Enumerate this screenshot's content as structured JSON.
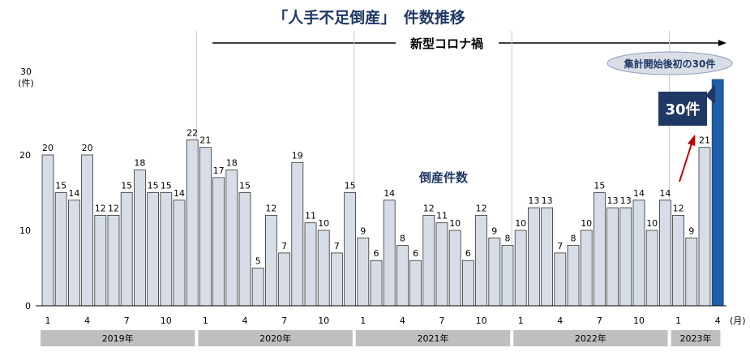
{
  "title": "「人手不足倒産」　件数推移",
  "corona_label": "新型コロナ禍",
  "series_label": "倒産件数",
  "callout_oval": "集計開始後初の30件",
  "callout_box": "30件",
  "colors": {
    "bar_fill": "#d6dde6",
    "bar_stroke": "#333333",
    "highlight_fill": "#1f5ea8",
    "title": "#1f3864",
    "callout_box": "#1f3864",
    "arrow_red": "#c00000",
    "year_band": "#bfbfbf"
  },
  "chart_data": {
    "type": "bar",
    "title": "「人手不足倒産」　件数推移",
    "ylabel": "30\n(件)",
    "xlabel_unit": "(月)",
    "ylim": [
      0,
      30
    ],
    "yticks": [
      0,
      10,
      20,
      30
    ],
    "y_unit": "(件)",
    "months": [
      1,
      2,
      3,
      4,
      5,
      6,
      7,
      8,
      9,
      10,
      11,
      12,
      1,
      2,
      3,
      4,
      5,
      6,
      7,
      8,
      9,
      10,
      11,
      12,
      1,
      2,
      3,
      4,
      5,
      6,
      7,
      8,
      9,
      10,
      11,
      12,
      1,
      2,
      3,
      4,
      5,
      6,
      7,
      8,
      9,
      10,
      11,
      12,
      1,
      2,
      3,
      4
    ],
    "x_tick_labels": [
      "1",
      "",
      "",
      "4",
      "",
      "",
      "7",
      "",
      "",
      "10",
      "",
      "",
      "1",
      "",
      "",
      "4",
      "",
      "",
      "7",
      "",
      "",
      "10",
      "",
      "",
      "1",
      "",
      "",
      "4",
      "",
      "",
      "7",
      "",
      "",
      "10",
      "",
      "",
      "1",
      "",
      "",
      "4",
      "",
      "",
      "7",
      "",
      "",
      "10",
      "",
      "",
      "1",
      "",
      "",
      "4"
    ],
    "values": [
      20,
      15,
      14,
      20,
      12,
      12,
      15,
      18,
      15,
      15,
      14,
      22,
      21,
      17,
      18,
      15,
      5,
      12,
      7,
      19,
      11,
      10,
      7,
      15,
      9,
      6,
      14,
      8,
      6,
      12,
      11,
      10,
      6,
      12,
      9,
      8,
      10,
      13,
      13,
      7,
      8,
      10,
      15,
      13,
      13,
      14,
      10,
      14,
      12,
      9,
      21,
      30
    ],
    "data_labels": [
      "20",
      "15",
      "14",
      "20",
      "12",
      "12",
      "15",
      "18",
      "15",
      "15",
      "14",
      "22",
      "21",
      "17",
      "18",
      "15",
      "5",
      "12",
      "7",
      "19",
      "11",
      "10",
      "7",
      "15",
      "9",
      "6",
      "14",
      "8",
      "6",
      "12",
      "11",
      "10",
      "6",
      "12",
      "9",
      "8",
      "10",
      "13",
      "13",
      "7",
      "8",
      "10",
      "15",
      "13",
      "13",
      "14",
      "10",
      "14",
      "12",
      "9",
      "21",
      ""
    ],
    "highlight_index": 51,
    "years": [
      {
        "label": "2019年",
        "start": 0,
        "count": 12
      },
      {
        "label": "2020年",
        "start": 12,
        "count": 12
      },
      {
        "label": "2021年",
        "start": 24,
        "count": 12
      },
      {
        "label": "2022年",
        "start": 36,
        "count": 12
      },
      {
        "label": "2023年",
        "start": 48,
        "count": 4
      }
    ],
    "grid": false,
    "legend": "none"
  }
}
